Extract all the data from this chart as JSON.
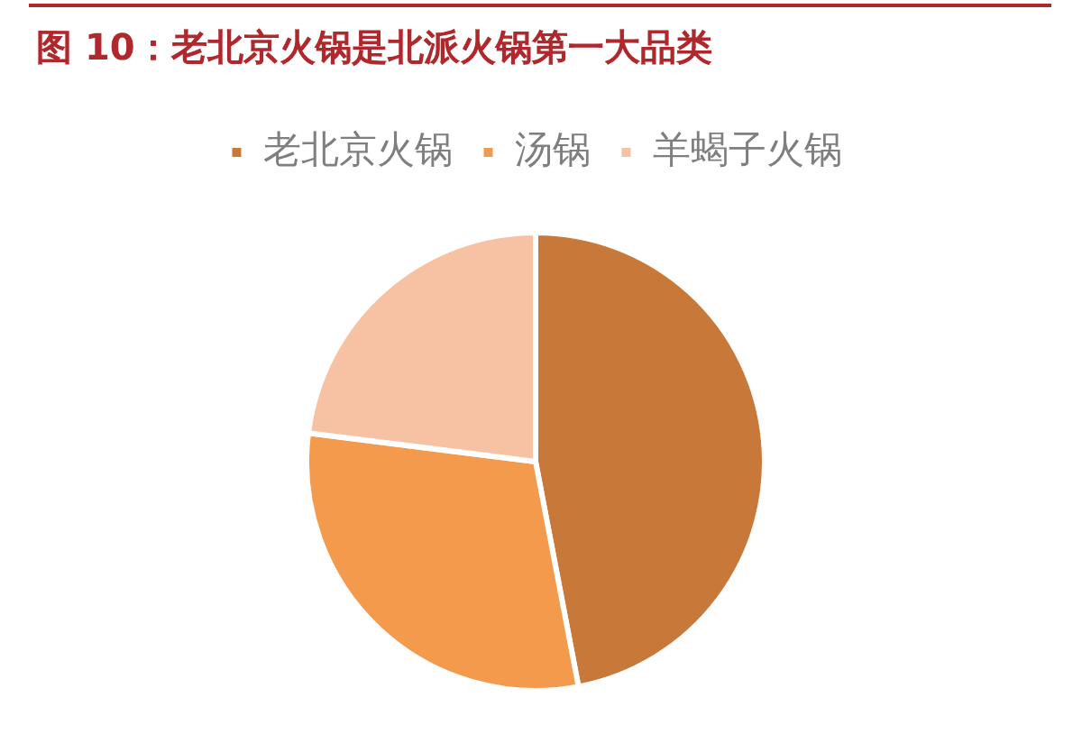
{
  "chart_data": {
    "type": "pie",
    "title": "图 10：老北京火锅是北派火锅第一大品类",
    "categories": [
      "老北京火锅",
      "汤锅",
      "羊蝎子火锅"
    ],
    "values": [
      47,
      30,
      23
    ],
    "colors": [
      "#c8793a",
      "#f39a4c",
      "#f7c2a4"
    ],
    "legend": "top"
  }
}
